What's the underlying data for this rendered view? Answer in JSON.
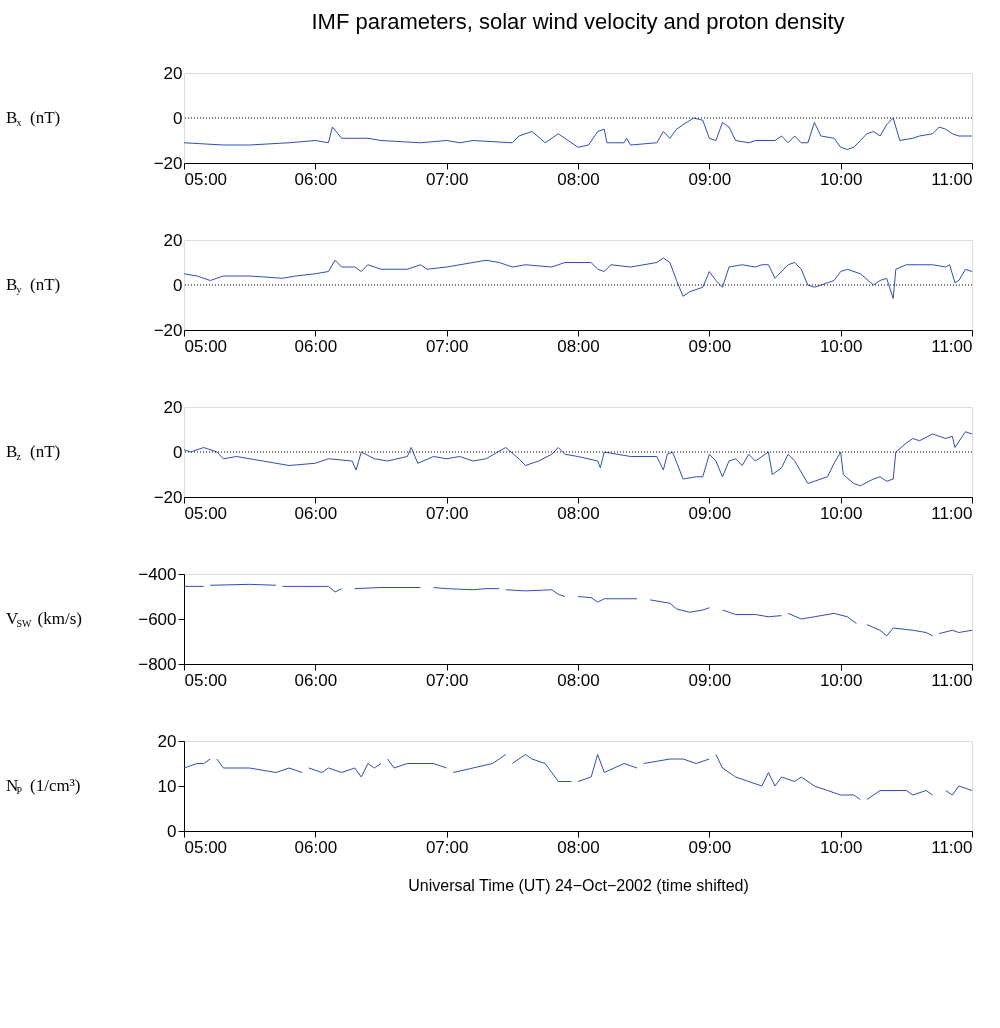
{
  "chart_data": [
    {
      "type": "line",
      "title": "IMF parameters, solar wind velocity and proton density",
      "ylabel": "B$_{x}$ (nT)",
      "xlim": [
        5,
        11
      ],
      "xticks": [
        {
          "value": 5,
          "label": "05:00"
        },
        {
          "value": 6,
          "label": "06:00"
        },
        {
          "value": 7,
          "label": "07:00"
        },
        {
          "value": 8,
          "label": "08:00"
        },
        {
          "value": 9,
          "label": "09:00"
        },
        {
          "value": 10,
          "label": "10:00"
        },
        {
          "value": 11,
          "label": "11:00"
        }
      ],
      "ylim": [
        -20,
        20
      ],
      "yticks": [
        {
          "value": -20,
          "label": "−20"
        },
        0,
        20
      ],
      "grid": false,
      "marker": "none",
      "line_style": "solid",
      "ref_lines": [
        {
          "axis": "y",
          "value": 0,
          "label": null,
          "color": "#000000",
          "line_style": "dotted"
        }
      ],
      "series": [
        {
          "color": "#3050b0",
          "x": [
            5.0,
            5.3,
            5.5,
            5.8,
            6.0,
            6.1,
            6.13,
            6.2,
            6.4,
            6.5,
            6.8,
            7.0,
            7.1,
            7.2,
            7.5,
            7.55,
            7.65,
            7.75,
            7.85,
            8.0,
            8.08,
            8.15,
            8.2,
            8.22,
            8.35,
            8.37,
            8.4,
            8.6,
            8.65,
            8.7,
            8.75,
            8.8,
            8.88,
            8.95,
            9.0,
            9.05,
            9.1,
            9.15,
            9.2,
            9.3,
            9.35,
            9.5,
            9.55,
            9.6,
            9.65,
            9.7,
            9.75,
            9.8,
            9.85,
            9.95,
            10.0,
            10.05,
            10.1,
            10.15,
            10.2,
            10.25,
            10.3,
            10.35,
            10.4,
            10.45,
            10.55,
            10.6,
            10.7,
            10.75,
            10.8,
            10.85,
            10.9,
            11.0
          ],
          "values": [
            -11,
            -12,
            -12,
            -11,
            -10,
            -11,
            -4,
            -9,
            -9,
            -10,
            -11,
            -10,
            -11,
            -10,
            -11,
            -8,
            -6,
            -11,
            -7,
            -13,
            -12,
            -6,
            -5,
            -11,
            -11,
            -9,
            -12,
            -11,
            -6,
            -9,
            -5,
            -3,
            0,
            -1,
            -9,
            -10,
            -2,
            -4,
            -10,
            -11,
            -10,
            -10,
            -8,
            -11,
            -8,
            -11,
            -11,
            -2,
            -8,
            -9,
            -13,
            -14,
            -13,
            -10,
            -7,
            -6,
            -8,
            -3,
            0,
            -10,
            -9,
            -8,
            -7,
            -4,
            -5,
            -7,
            -8,
            -8
          ]
        }
      ]
    },
    {
      "type": "line",
      "ylabel": "B$_{y}$ (nT)",
      "xlim": [
        5,
        11
      ],
      "xticks": [
        {
          "value": 5,
          "label": "05:00"
        },
        {
          "value": 6,
          "label": "06:00"
        },
        {
          "value": 7,
          "label": "07:00"
        },
        {
          "value": 8,
          "label": "08:00"
        },
        {
          "value": 9,
          "label": "09:00"
        },
        {
          "value": 10,
          "label": "10:00"
        },
        {
          "value": 11,
          "label": "11:00"
        }
      ],
      "ylim": [
        -20,
        20
      ],
      "yticks": [
        {
          "value": -20,
          "label": "−20"
        },
        0,
        20
      ],
      "grid": false,
      "marker": "none",
      "line_style": "solid",
      "ref_lines": [
        {
          "axis": "y",
          "value": 0,
          "label": null,
          "color": "#000000",
          "line_style": "dotted"
        }
      ],
      "series": [
        {
          "color": "#3050b0",
          "x": [
            5.0,
            5.1,
            5.2,
            5.3,
            5.5,
            5.75,
            5.85,
            6.0,
            6.1,
            6.15,
            6.2,
            6.3,
            6.35,
            6.4,
            6.5,
            6.7,
            6.8,
            6.85,
            7.0,
            7.2,
            7.3,
            7.4,
            7.5,
            7.6,
            7.8,
            7.9,
            8.1,
            8.15,
            8.2,
            8.25,
            8.4,
            8.6,
            8.65,
            8.7,
            8.75,
            8.8,
            8.85,
            8.9,
            8.95,
            9.0,
            9.05,
            9.1,
            9.15,
            9.25,
            9.35,
            9.4,
            9.45,
            9.5,
            9.6,
            9.65,
            9.7,
            9.75,
            9.8,
            9.85,
            9.9,
            9.95,
            10.0,
            10.05,
            10.15,
            10.25,
            10.3,
            10.35,
            10.4,
            10.42,
            10.5,
            10.6,
            10.7,
            10.8,
            10.83,
            10.87,
            10.9,
            10.95,
            11.0
          ],
          "values": [
            5,
            4,
            2,
            4,
            4,
            3,
            4,
            5,
            6,
            11,
            8,
            8,
            6,
            9,
            7,
            7,
            9,
            7,
            8,
            10,
            11,
            10,
            8,
            9,
            8,
            10,
            10,
            7,
            6,
            9,
            8,
            10,
            12,
            10,
            2,
            -5,
            -3,
            -2,
            -1,
            6,
            2,
            -1,
            8,
            9,
            8,
            9,
            9,
            3,
            9,
            10,
            7,
            0,
            -1,
            0,
            1,
            2,
            6,
            7,
            5,
            0,
            2,
            3,
            -6,
            7,
            9,
            9,
            9,
            8,
            9,
            1,
            2,
            7,
            6
          ]
        }
      ]
    },
    {
      "type": "line",
      "ylabel": "B$_{z}$ (nT)",
      "xlim": [
        5,
        11
      ],
      "xticks": [
        {
          "value": 5,
          "label": "05:00"
        },
        {
          "value": 6,
          "label": "06:00"
        },
        {
          "value": 7,
          "label": "07:00"
        },
        {
          "value": 8,
          "label": "08:00"
        },
        {
          "value": 9,
          "label": "09:00"
        },
        {
          "value": 10,
          "label": "10:00"
        },
        {
          "value": 11,
          "label": "11:00"
        }
      ],
      "ylim": [
        -20,
        20
      ],
      "yticks": [
        {
          "value": -20,
          "label": "−20"
        },
        0,
        20
      ],
      "grid": false,
      "marker": "none",
      "line_style": "solid",
      "ref_lines": [
        {
          "axis": "y",
          "value": 0,
          "label": null,
          "color": "#000000",
          "line_style": "dotted"
        }
      ],
      "series": [
        {
          "color": "#3050b0",
          "x": [
            5.0,
            5.05,
            5.1,
            5.15,
            5.25,
            5.3,
            5.4,
            5.5,
            5.6,
            5.8,
            6.0,
            6.1,
            6.28,
            6.31,
            6.35,
            6.45,
            6.55,
            6.7,
            6.73,
            6.78,
            6.9,
            7.0,
            7.1,
            7.2,
            7.3,
            7.45,
            7.55,
            7.6,
            7.7,
            7.8,
            7.85,
            7.9,
            8.0,
            8.15,
            8.17,
            8.2,
            8.4,
            8.6,
            8.65,
            8.68,
            8.72,
            8.8,
            8.9,
            8.95,
            9.0,
            9.05,
            9.1,
            9.15,
            9.2,
            9.25,
            9.3,
            9.35,
            9.4,
            9.45,
            9.48,
            9.55,
            9.6,
            9.65,
            9.75,
            9.8,
            9.9,
            9.95,
            10.0,
            10.02,
            10.1,
            10.15,
            10.25,
            10.3,
            10.35,
            10.4,
            10.42,
            10.5,
            10.55,
            10.6,
            10.7,
            10.8,
            10.85,
            10.87,
            10.95,
            11.0
          ],
          "values": [
            1,
            0,
            1,
            2,
            0,
            -3,
            -2,
            -3,
            -4,
            -6,
            -5,
            -3,
            -4,
            -8,
            0,
            -3,
            -4,
            -2,
            2,
            -5,
            -2,
            -3,
            -2,
            -4,
            -3,
            2,
            -3,
            -6,
            -4,
            -1,
            2,
            -1,
            -2,
            -4,
            -7,
            0,
            -2,
            -2,
            -8,
            -1,
            0,
            -12,
            -11,
            -11,
            -1,
            -4,
            -11,
            -4,
            -3,
            -6,
            -1,
            -4,
            -2,
            0,
            -10,
            -7,
            -1,
            -4,
            -14,
            -13,
            -11,
            -5,
            0,
            -10,
            -14,
            -15,
            -12,
            -11,
            -13,
            -12,
            0,
            4,
            6,
            5,
            8,
            6,
            7,
            2,
            9,
            8
          ]
        }
      ]
    },
    {
      "type": "line",
      "ylabel": "V$_{SW}$ (km/s)",
      "xlim": [
        5,
        11
      ],
      "xticks": [
        {
          "value": 5,
          "label": "05:00"
        },
        {
          "value": 6,
          "label": "06:00"
        },
        {
          "value": 7,
          "label": "07:00"
        },
        {
          "value": 8,
          "label": "08:00"
        },
        {
          "value": 9,
          "label": "09:00"
        },
        {
          "value": 10,
          "label": "10:00"
        },
        {
          "value": 11,
          "label": "11:00"
        }
      ],
      "ylim": [
        -800,
        -400
      ],
      "yticks": [
        {
          "value": -800,
          "label": "−800"
        },
        {
          "value": -600,
          "label": "−600"
        },
        {
          "value": -400,
          "label": "−400"
        }
      ],
      "grid": false,
      "marker": "none",
      "line_style": "solid",
      "series": [
        {
          "color": "#3050b0",
          "x": [
            5.0,
            5.15,
            5.17,
            5.2,
            5.5,
            5.7,
            5.72,
            5.75,
            5.9,
            6.1,
            6.15,
            6.2,
            6.25,
            6.3,
            6.5,
            6.8,
            6.85,
            6.9,
            7.0,
            7.2,
            7.3,
            7.4,
            7.42,
            7.45,
            7.6,
            7.8,
            7.85,
            7.9,
            7.95,
            8.0,
            8.1,
            8.15,
            8.2,
            8.45,
            8.5,
            8.55,
            8.7,
            8.75,
            8.85,
            8.95,
            9.0,
            9.05,
            9.1,
            9.2,
            9.35,
            9.45,
            9.55,
            9.57,
            9.6,
            9.7,
            9.8,
            9.95,
            10.05,
            10.12,
            10.16,
            10.2,
            10.3,
            10.35,
            10.4,
            10.55,
            10.65,
            10.7,
            10.72,
            10.75,
            10.85,
            10.9,
            11.0
          ],
          "values": [
            -455,
            -455,
            null,
            -450,
            -446,
            -450,
            null,
            -455,
            -455,
            -455,
            -480,
            -465,
            null,
            -465,
            -460,
            -460,
            null,
            -460,
            -465,
            -470,
            -465,
            -465,
            null,
            -470,
            -475,
            -470,
            -490,
            -500,
            null,
            -500,
            -505,
            -525,
            -510,
            -510,
            null,
            -515,
            -530,
            -555,
            -570,
            -560,
            -550,
            null,
            -560,
            -580,
            -580,
            -590,
            -585,
            null,
            -575,
            -600,
            -590,
            -575,
            -590,
            -620,
            null,
            -625,
            -650,
            -675,
            -640,
            -650,
            -660,
            -675,
            null,
            -665,
            -650,
            -660,
            -650
          ]
        }
      ]
    },
    {
      "type": "line",
      "ylabel": "N$_{P}$ (1/cm³)",
      "xlabel": "Universal Time (UT) 24−Oct−2002 (time shifted)",
      "xlim": [
        5,
        11
      ],
      "xticks": [
        {
          "value": 5,
          "label": "05:00"
        },
        {
          "value": 6,
          "label": "06:00"
        },
        {
          "value": 7,
          "label": "07:00"
        },
        {
          "value": 8,
          "label": "08:00"
        },
        {
          "value": 9,
          "label": "09:00"
        },
        {
          "value": 10,
          "label": "10:00"
        },
        {
          "value": 11,
          "label": "11:00"
        }
      ],
      "ylim": [
        0,
        20
      ],
      "yticks": [
        0,
        10,
        20
      ],
      "grid": false,
      "marker": "none",
      "line_style": "solid",
      "series": [
        {
          "color": "#3050b0",
          "x": [
            5.0,
            5.1,
            5.15,
            5.2,
            5.22,
            5.25,
            5.3,
            5.5,
            5.7,
            5.8,
            5.9,
            5.92,
            5.95,
            6.05,
            6.1,
            6.2,
            6.3,
            6.35,
            6.4,
            6.45,
            6.5,
            6.52,
            6.55,
            6.6,
            6.7,
            6.9,
            7.0,
            7.02,
            7.05,
            7.2,
            7.35,
            7.4,
            7.45,
            7.47,
            7.5,
            7.6,
            7.65,
            7.75,
            7.85,
            7.95,
            7.97,
            8.0,
            8.1,
            8.15,
            8.2,
            8.35,
            8.45,
            8.47,
            8.5,
            8.7,
            8.8,
            8.9,
            9.0,
            9.02,
            9.05,
            9.1,
            9.2,
            9.3,
            9.4,
            9.45,
            9.5,
            9.55,
            9.65,
            9.7,
            9.8,
            9.9,
            10.0,
            10.1,
            10.15,
            10.17,
            10.2,
            10.3,
            10.5,
            10.55,
            10.65,
            10.7,
            10.75,
            10.8,
            10.85,
            10.9,
            11.0
          ],
          "values": [
            14,
            15,
            15,
            16,
            null,
            16,
            14,
            14,
            13,
            14,
            13,
            null,
            14,
            13,
            14,
            13,
            14,
            12,
            15,
            14,
            15,
            null,
            16,
            14,
            15,
            15,
            14,
            null,
            13,
            14,
            15,
            16,
            17,
            null,
            15,
            17,
            16,
            15,
            11,
            11,
            null,
            11,
            12,
            17,
            13,
            15,
            14,
            null,
            15,
            16,
            16,
            15,
            16,
            null,
            17,
            14,
            12,
            11,
            10,
            13,
            10,
            12,
            11,
            12,
            10,
            9,
            8,
            8,
            7,
            null,
            7,
            9,
            9,
            8,
            9,
            8,
            null,
            9,
            8,
            10,
            9
          ]
        }
      ]
    }
  ]
}
